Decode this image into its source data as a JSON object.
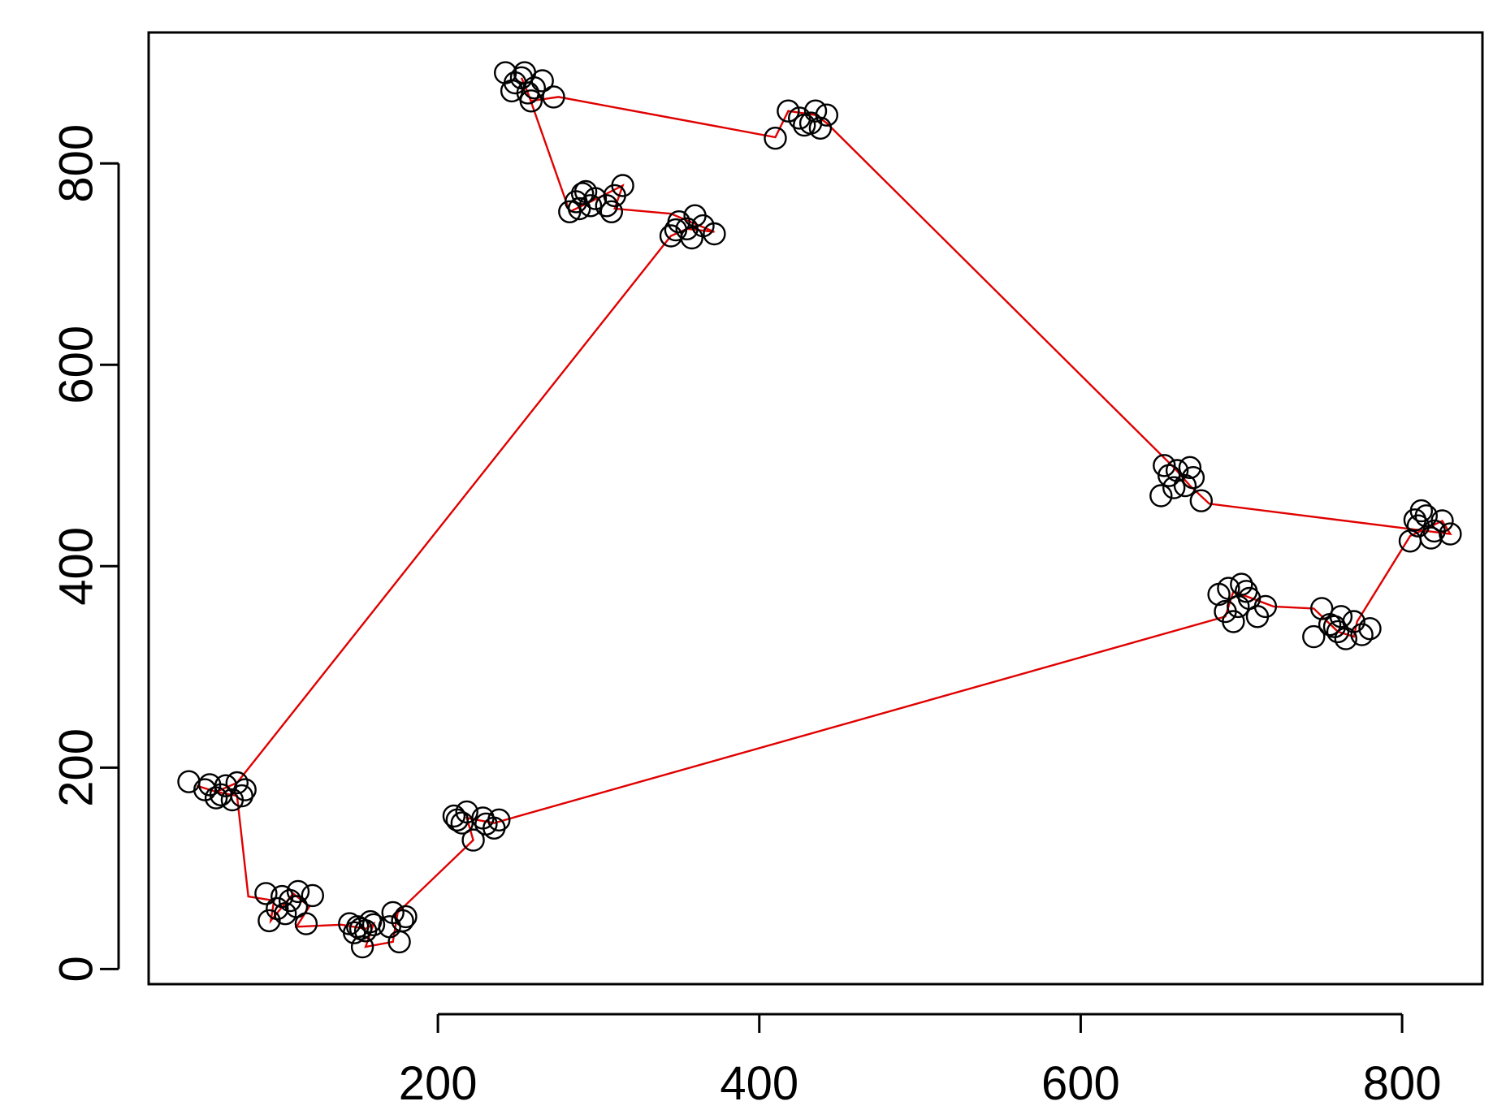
{
  "chart_data": {
    "type": "scatter",
    "title": "",
    "xlabel": "",
    "ylabel": "",
    "xlim": [
      20,
      850
    ],
    "ylim": [
      -15,
      930
    ],
    "x_ticks": [
      200,
      400,
      600,
      800
    ],
    "x_tick_labels": [
      "200",
      "400",
      "600",
      "800"
    ],
    "y_ticks": [
      0,
      200,
      400,
      600,
      800
    ],
    "y_tick_labels": [
      "0",
      "200",
      "400",
      "600",
      "800"
    ],
    "grid": false,
    "legend": "none",
    "point_color": "#000000",
    "line_color": "#e00000",
    "clusters": [
      {
        "x": 70,
        "y": 176,
        "points": [
          [
            45,
            186
          ],
          [
            55,
            178
          ],
          [
            62,
            170
          ],
          [
            68,
            182
          ],
          [
            72,
            168
          ],
          [
            75,
            185
          ],
          [
            80,
            178
          ],
          [
            65,
            173
          ],
          [
            58,
            183
          ],
          [
            78,
            172
          ]
        ]
      },
      {
        "x": 108,
        "y": 60,
        "points": [
          [
            93,
            75
          ],
          [
            103,
            72
          ],
          [
            113,
            77
          ],
          [
            122,
            73
          ],
          [
            95,
            48
          ],
          [
            105,
            55
          ],
          [
            112,
            62
          ],
          [
            118,
            45
          ],
          [
            108,
            68
          ],
          [
            100,
            60
          ]
        ]
      },
      {
        "x": 155,
        "y": 40,
        "points": [
          [
            145,
            45
          ],
          [
            150,
            42
          ],
          [
            155,
            38
          ],
          [
            160,
            44
          ],
          [
            153,
            22
          ],
          [
            148,
            36
          ],
          [
            158,
            47
          ],
          [
            152,
            40
          ]
        ]
      },
      {
        "x": 175,
        "y": 45,
        "points": [
          [
            172,
            56
          ],
          [
            178,
            48
          ],
          [
            176,
            27
          ],
          [
            170,
            42
          ],
          [
            180,
            52
          ]
        ]
      },
      {
        "x": 220,
        "y": 145,
        "points": [
          [
            210,
            152
          ],
          [
            215,
            145
          ],
          [
            222,
            128
          ],
          [
            228,
            150
          ],
          [
            235,
            140
          ],
          [
            238,
            148
          ],
          [
            218,
            156
          ],
          [
            230,
            144
          ],
          [
            212,
            148
          ]
        ]
      },
      {
        "x": 695,
        "y": 365,
        "points": [
          [
            686,
            372
          ],
          [
            690,
            355
          ],
          [
            695,
            345
          ],
          [
            700,
            382
          ],
          [
            705,
            368
          ],
          [
            710,
            350
          ],
          [
            715,
            360
          ],
          [
            692,
            378
          ],
          [
            698,
            360
          ],
          [
            703,
            375
          ]
        ]
      },
      {
        "x": 765,
        "y": 338,
        "points": [
          [
            745,
            330
          ],
          [
            750,
            358
          ],
          [
            755,
            342
          ],
          [
            760,
            335
          ],
          [
            765,
            328
          ],
          [
            770,
            345
          ],
          [
            775,
            332
          ],
          [
            780,
            338
          ],
          [
            762,
            350
          ],
          [
            758,
            340
          ]
        ]
      },
      {
        "x": 815,
        "y": 440,
        "points": [
          [
            805,
            425
          ],
          [
            810,
            440
          ],
          [
            815,
            450
          ],
          [
            820,
            435
          ],
          [
            825,
            445
          ],
          [
            830,
            432
          ],
          [
            812,
            455
          ],
          [
            818,
            428
          ],
          [
            808,
            446
          ]
        ]
      },
      {
        "x": 660,
        "y": 485,
        "points": [
          [
            650,
            470
          ],
          [
            655,
            490
          ],
          [
            660,
            495
          ],
          [
            665,
            480
          ],
          [
            670,
            488
          ],
          [
            675,
            465
          ],
          [
            652,
            500
          ],
          [
            658,
            478
          ],
          [
            668,
            498
          ]
        ]
      },
      {
        "x": 430,
        "y": 840,
        "points": [
          [
            410,
            825
          ],
          [
            418,
            852
          ],
          [
            425,
            845
          ],
          [
            432,
            840
          ],
          [
            438,
            835
          ],
          [
            442,
            848
          ],
          [
            428,
            838
          ],
          [
            435,
            852
          ]
        ]
      },
      {
        "x": 250,
        "y": 878,
        "points": [
          [
            242,
            890
          ],
          [
            248,
            880
          ],
          [
            252,
            885
          ],
          [
            256,
            870
          ],
          [
            260,
            875
          ],
          [
            265,
            882
          ],
          [
            272,
            866
          ],
          [
            246,
            872
          ],
          [
            254,
            890
          ],
          [
            258,
            862
          ]
        ]
      },
      {
        "x": 290,
        "y": 760,
        "points": [
          [
            282,
            752
          ],
          [
            286,
            762
          ],
          [
            290,
            770
          ],
          [
            295,
            758
          ],
          [
            298,
            765
          ],
          [
            288,
            755
          ],
          [
            292,
            772
          ]
        ]
      },
      {
        "x": 315,
        "y": 760,
        "points": [
          [
            305,
            758
          ],
          [
            310,
            768
          ],
          [
            315,
            778
          ],
          [
            308,
            752
          ]
        ]
      },
      {
        "x": 355,
        "y": 735,
        "points": [
          [
            345,
            728
          ],
          [
            350,
            742
          ],
          [
            355,
            735
          ],
          [
            360,
            748
          ],
          [
            365,
            738
          ],
          [
            372,
            730
          ],
          [
            348,
            734
          ],
          [
            358,
            726
          ]
        ]
      }
    ],
    "route": [
      [
        50,
        182
      ],
      [
        62,
        176
      ],
      [
        75,
        172
      ],
      [
        82,
        72
      ],
      [
        98,
        68
      ],
      [
        96,
        48
      ],
      [
        110,
        75
      ],
      [
        120,
        62
      ],
      [
        112,
        42
      ],
      [
        140,
        44
      ],
      [
        155,
        40
      ],
      [
        160,
        45
      ],
      [
        155,
        22
      ],
      [
        172,
        27
      ],
      [
        175,
        56
      ],
      [
        222,
        128
      ],
      [
        218,
        150
      ],
      [
        235,
        145
      ],
      [
        690,
        350
      ],
      [
        695,
        375
      ],
      [
        720,
        360
      ],
      [
        745,
        358
      ],
      [
        760,
        335
      ],
      [
        770,
        330
      ],
      [
        772,
        345
      ],
      [
        805,
        430
      ],
      [
        825,
        445
      ],
      [
        830,
        432
      ],
      [
        680,
        462
      ],
      [
        668,
        480
      ],
      [
        658,
        498
      ],
      [
        442,
        840
      ],
      [
        435,
        848
      ],
      [
        418,
        852
      ],
      [
        410,
        826
      ],
      [
        275,
        866
      ],
      [
        258,
        862
      ],
      [
        252,
        885
      ],
      [
        256,
        870
      ],
      [
        282,
        752
      ],
      [
        295,
        762
      ],
      [
        315,
        778
      ],
      [
        310,
        755
      ],
      [
        345,
        750
      ],
      [
        372,
        732
      ],
      [
        355,
        735
      ],
      [
        345,
        728
      ],
      [
        75,
        185
      ],
      [
        62,
        176
      ]
    ]
  }
}
